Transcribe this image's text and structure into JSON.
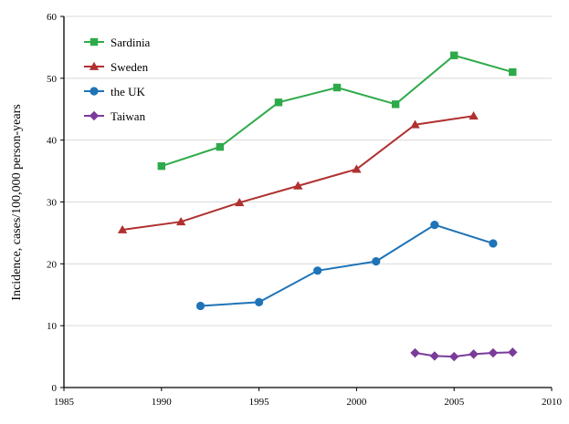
{
  "chart_data": {
    "type": "line",
    "title": "",
    "xlabel": "",
    "ylabel": "Incidence, cases/100,000 person-years",
    "xlim": [
      1985,
      2010
    ],
    "ylim": [
      0,
      60
    ],
    "xticks": [
      1985,
      1990,
      1995,
      2000,
      2005,
      2010
    ],
    "yticks": [
      0,
      10,
      20,
      30,
      40,
      50,
      60
    ],
    "grid": "horizontal",
    "legend_position": "top-left",
    "series": [
      {
        "name": "Sardinia",
        "color": "#2eaa4a",
        "marker": "square",
        "x": [
          1990,
          1993,
          1996,
          1999,
          2002,
          2005,
          2008
        ],
        "y": [
          35.8,
          38.9,
          46.1,
          48.5,
          45.8,
          53.7,
          51.0
        ]
      },
      {
        "name": "Sweden",
        "color": "#b03030",
        "marker": "triangle",
        "x": [
          1988,
          1991,
          1994,
          1997,
          2000,
          2003,
          2006
        ],
        "y": [
          25.5,
          26.8,
          29.9,
          32.6,
          35.3,
          42.5,
          43.9
        ]
      },
      {
        "name": "the UK",
        "color": "#1f73b7",
        "marker": "circle",
        "x": [
          1992,
          1995,
          1998,
          2001,
          2004,
          2007
        ],
        "y": [
          13.2,
          13.8,
          18.9,
          20.4,
          26.3,
          23.3
        ]
      },
      {
        "name": "Taiwan",
        "color": "#7a3b9a",
        "marker": "diamond",
        "x": [
          2003,
          2004,
          2005,
          2006,
          2007,
          2008
        ],
        "y": [
          5.6,
          5.1,
          5.0,
          5.4,
          5.6,
          5.7
        ]
      }
    ]
  }
}
